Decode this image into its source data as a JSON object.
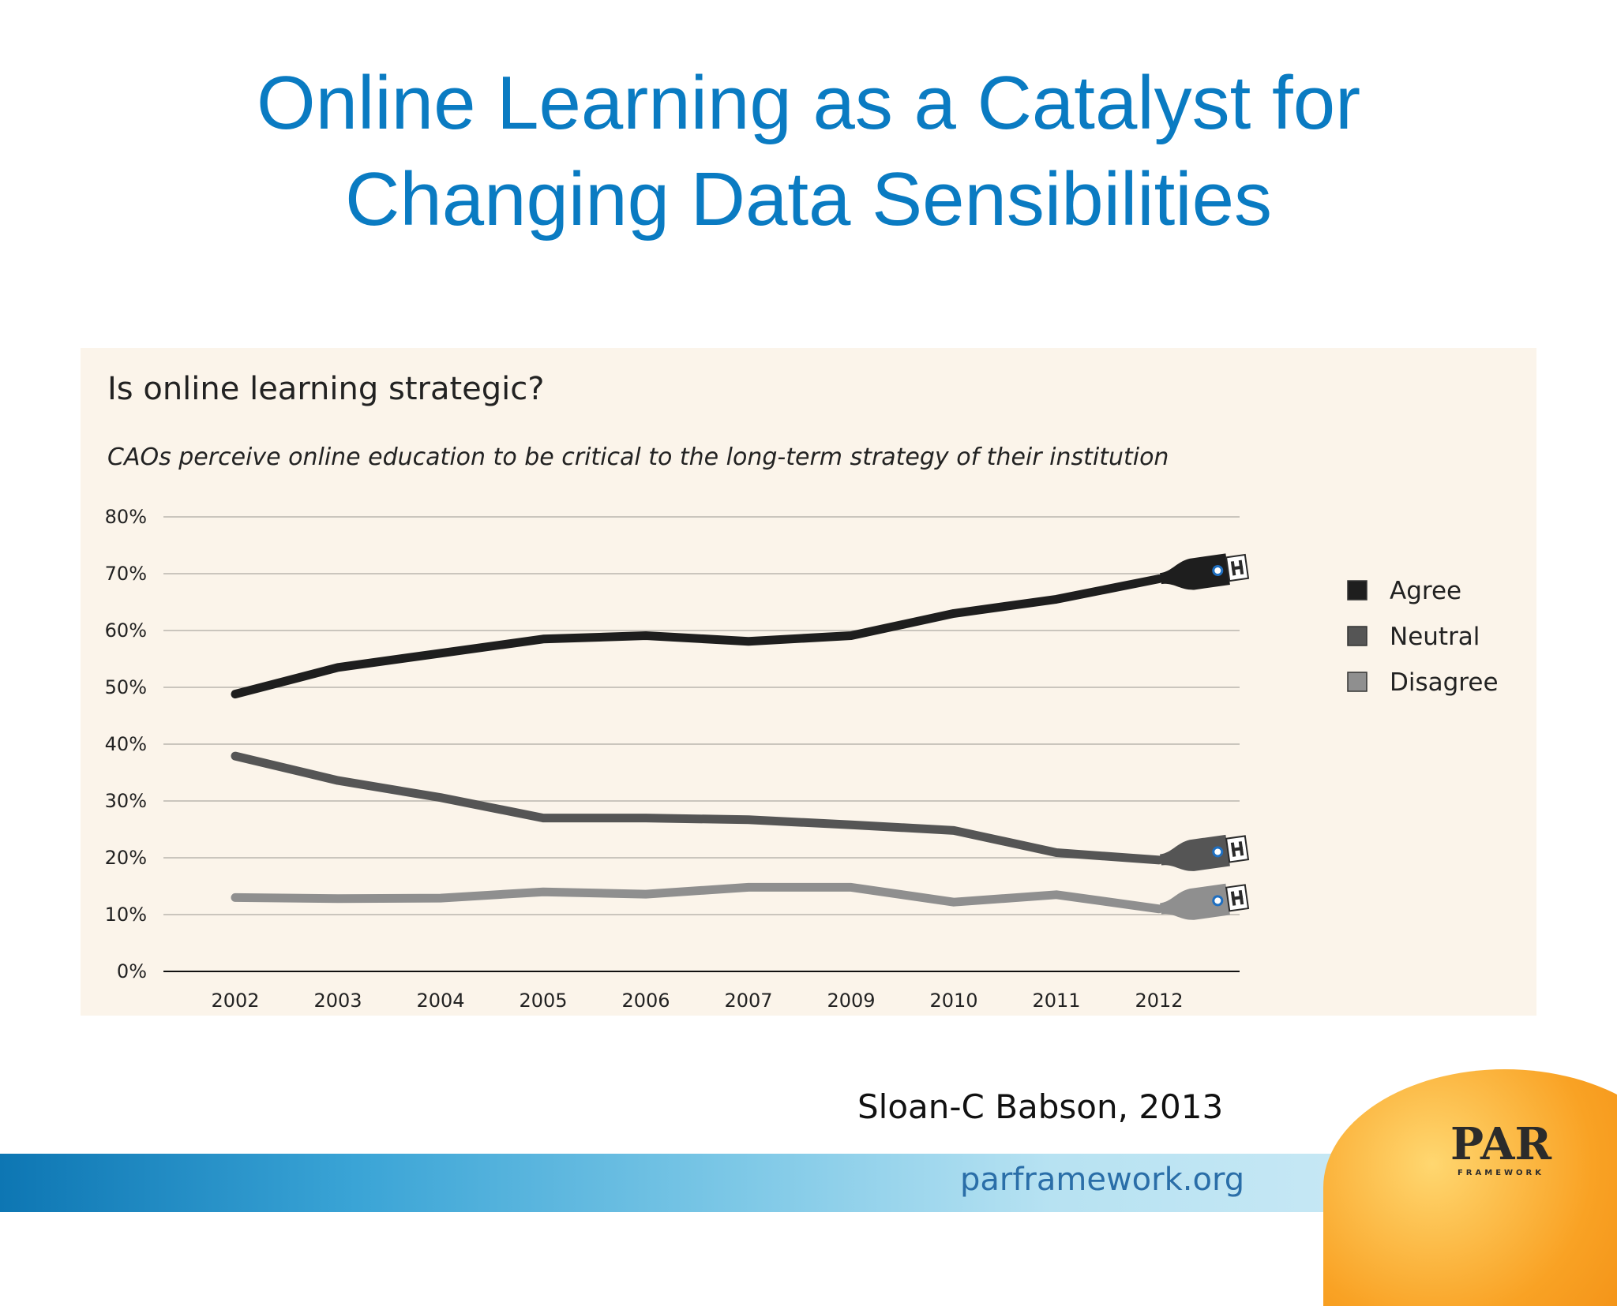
{
  "slide": {
    "title_line1": "Online Learning as a Catalyst for",
    "title_line2": "Changing Data Sensibilities",
    "source": "Sloan-C Babson, 2013"
  },
  "footer": {
    "url": "parframework.org",
    "logo_text": "PAR",
    "logo_subtext": "FRAMEWORK"
  },
  "chart_data": {
    "type": "line",
    "title": "Is online learning strategic?",
    "subtitle": "CAOs perceive online education to be critical to the long-term strategy of  their institution",
    "categories": [
      "2002",
      "2003",
      "2004",
      "2005",
      "2006",
      "2007",
      "2009",
      "2010",
      "2011",
      "2012"
    ],
    "series": [
      {
        "name": "Agree",
        "color": "#1e1e1e",
        "values": [
          48.8,
          53.5,
          56.0,
          58.5,
          59.1,
          58.1,
          59.1,
          63.0,
          65.5,
          69.1
        ]
      },
      {
        "name": "Neutral",
        "color": "#555555",
        "values": [
          37.9,
          33.6,
          30.6,
          27.0,
          27.0,
          26.7,
          25.8,
          24.8,
          20.9,
          19.6
        ]
      },
      {
        "name": "Disagree",
        "color": "#8f8f8f",
        "values": [
          13.0,
          12.8,
          12.9,
          14.0,
          13.6,
          14.8,
          14.8,
          12.2,
          13.5,
          11.0
        ]
      }
    ],
    "yticks": [
      "0%",
      "10%",
      "20%",
      "30%",
      "40%",
      "50%",
      "60%",
      "70%",
      "80%"
    ],
    "ylim": [
      0,
      80
    ],
    "grid": true,
    "legend_position": "right",
    "line_end_icon": "usb-plug-icon"
  }
}
